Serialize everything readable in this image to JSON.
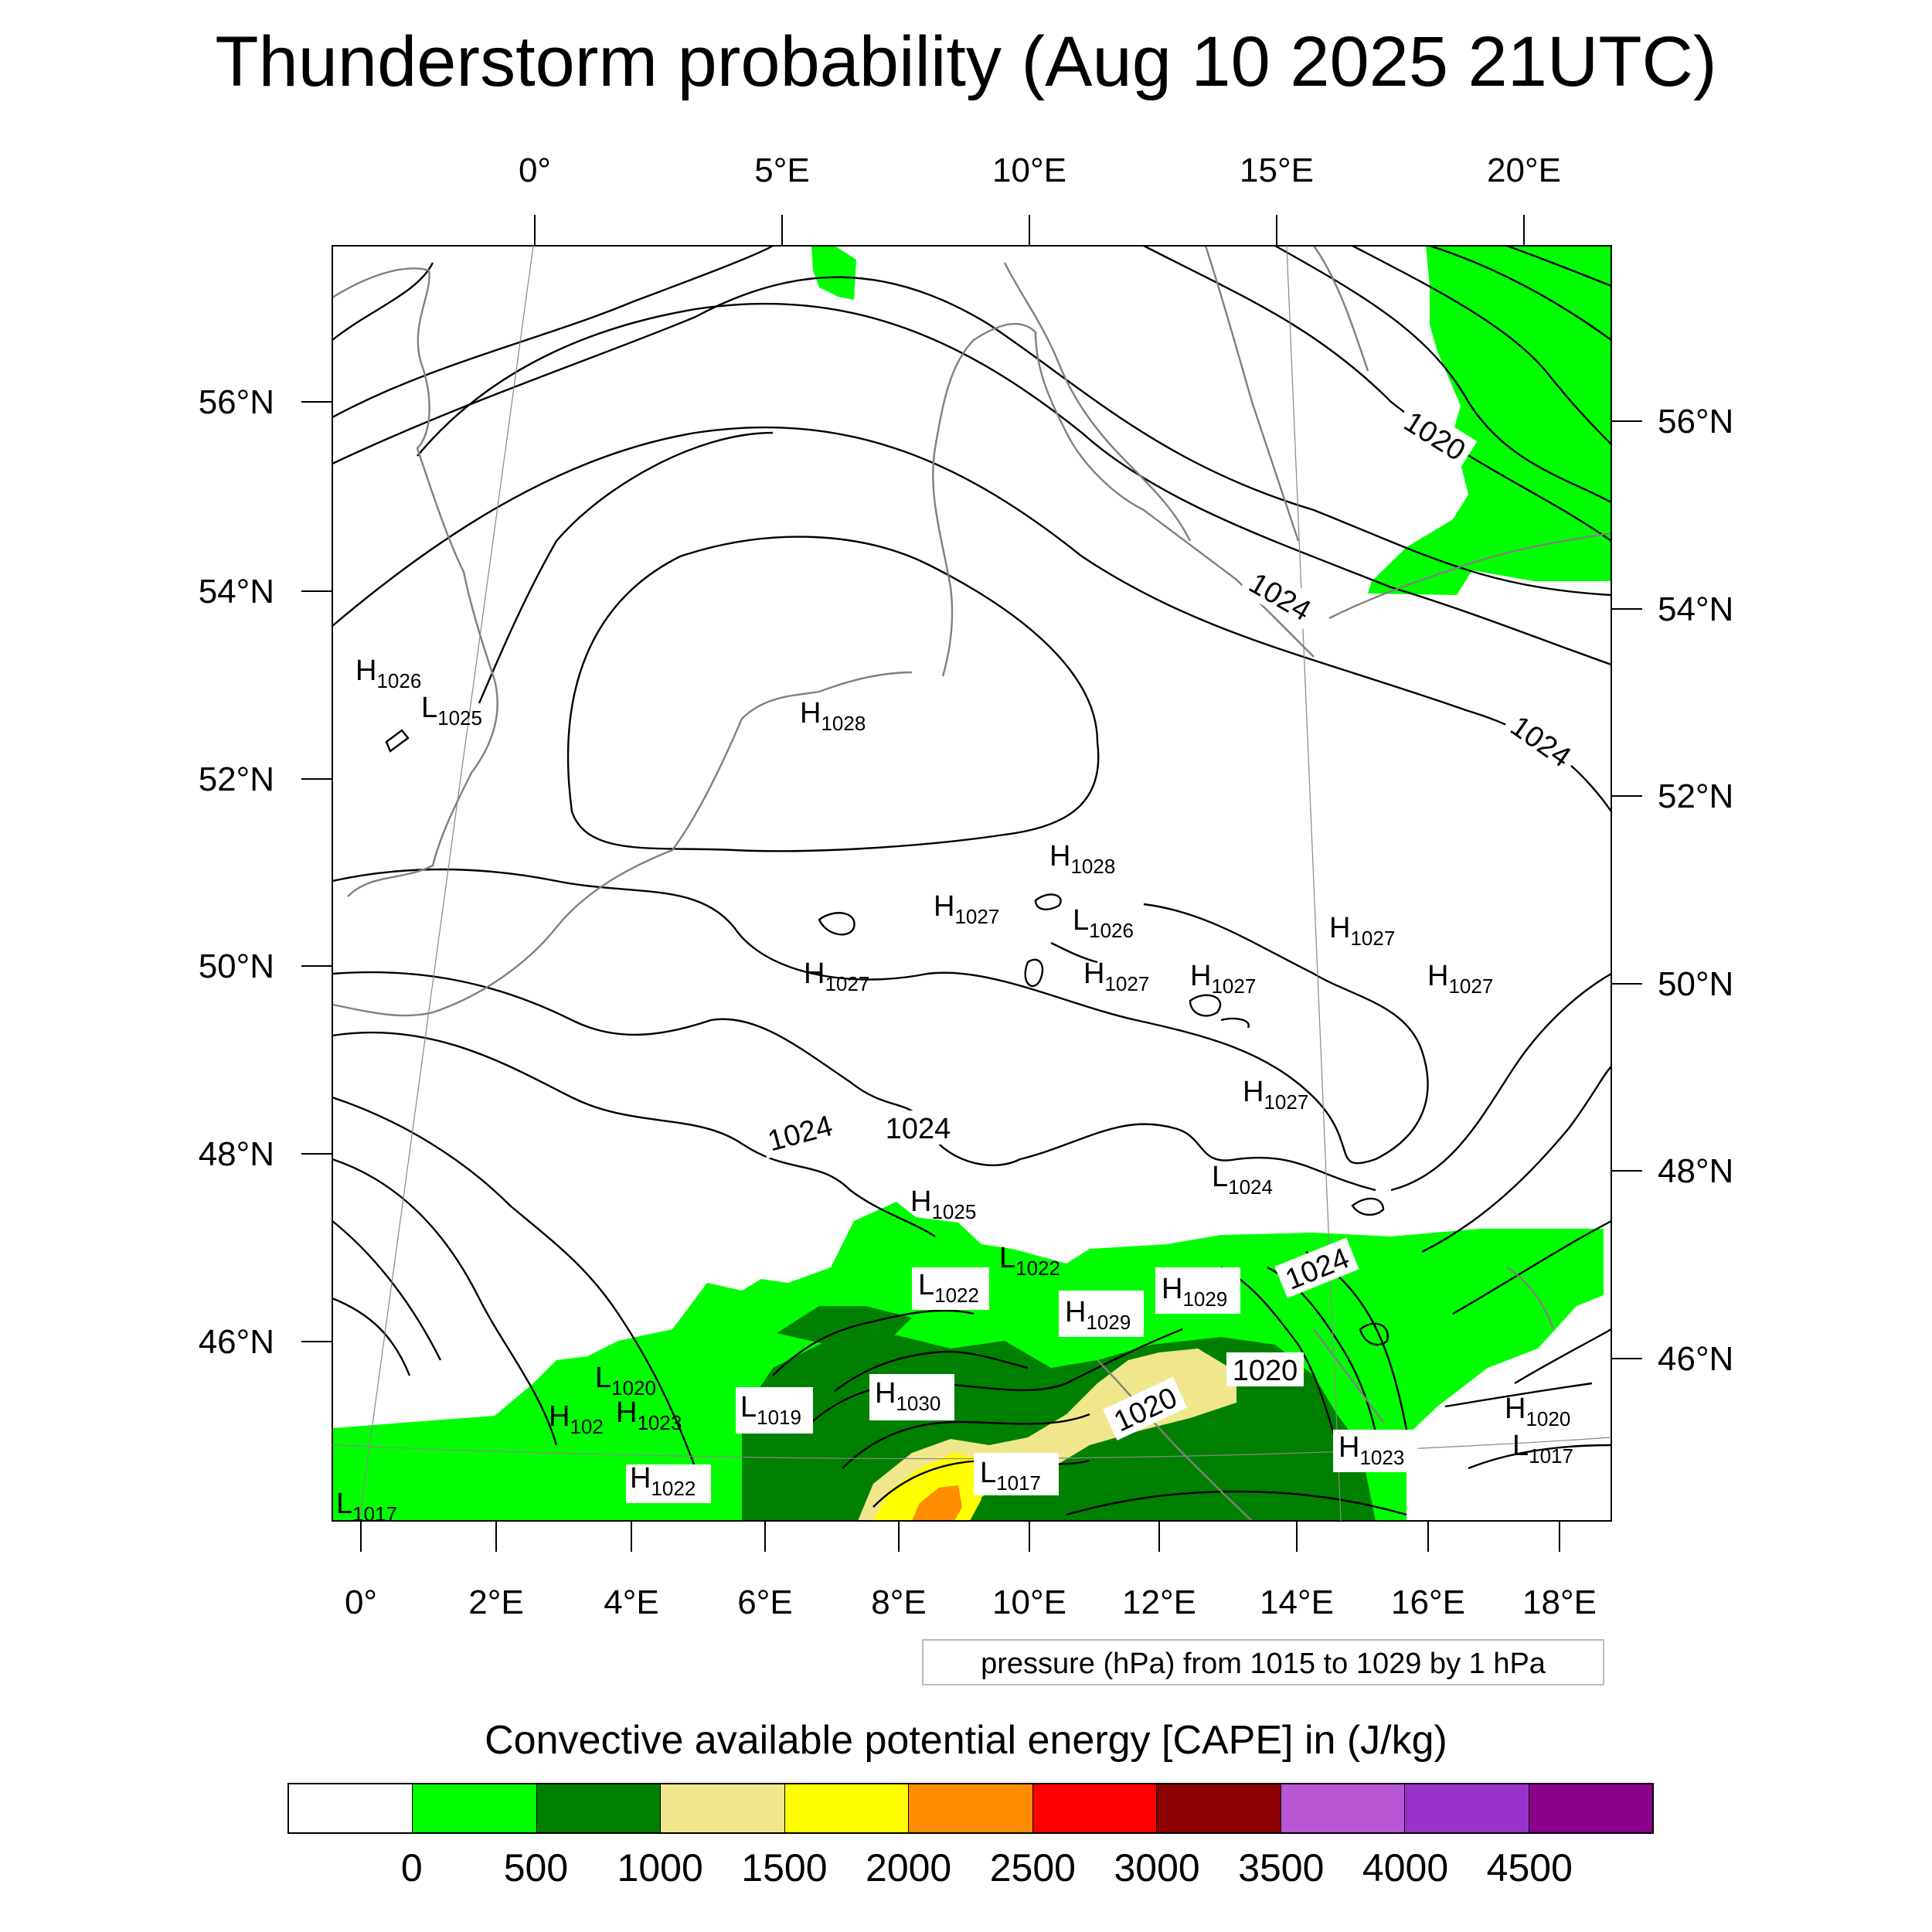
{
  "title": "Thunderstorm probability (Aug 10 2025 21UTC)",
  "top_axis": [
    "0°",
    "5°E",
    "10°E",
    "15°E",
    "20°E"
  ],
  "bottom_axis": [
    "0°",
    "2°E",
    "4°E",
    "6°E",
    "8°E",
    "10°E",
    "12°E",
    "14°E",
    "16°E",
    "18°E"
  ],
  "left_axis": [
    "56°N",
    "54°N",
    "52°N",
    "50°N",
    "48°N",
    "46°N"
  ],
  "right_axis": [
    "56°N",
    "54°N",
    "52°N",
    "50°N",
    "48°N",
    "46°N"
  ],
  "contour_labels": [
    "1020",
    "1024",
    "1024",
    "1024",
    "1024",
    "1024",
    "1020",
    "1020"
  ],
  "pressure_centers": [
    {
      "t": "H",
      "v": "1026"
    },
    {
      "t": "L",
      "v": "1025"
    },
    {
      "t": "H",
      "v": "1028"
    },
    {
      "t": "H",
      "v": "1028"
    },
    {
      "t": "H",
      "v": "1027"
    },
    {
      "t": "L",
      "v": "1026"
    },
    {
      "t": "H",
      "v": "1027"
    },
    {
      "t": "H",
      "v": "1027"
    },
    {
      "t": "H",
      "v": "1027"
    },
    {
      "t": "H",
      "v": "1027"
    },
    {
      "t": "H",
      "v": "1027"
    },
    {
      "t": "H",
      "v": "1027"
    },
    {
      "t": "L",
      "v": "1024"
    },
    {
      "t": "H",
      "v": "1025"
    },
    {
      "t": "L",
      "v": "1022"
    },
    {
      "t": "L",
      "v": "1022"
    },
    {
      "t": "H",
      "v": "1029"
    },
    {
      "t": "H",
      "v": "1029"
    },
    {
      "t": "L",
      "v": "1020"
    },
    {
      "t": "H",
      "v": "102"
    },
    {
      "t": "H",
      "v": "1023"
    },
    {
      "t": "L",
      "v": "1019"
    },
    {
      "t": "H",
      "v": "1030"
    },
    {
      "t": "H",
      "v": "1022"
    },
    {
      "t": "L",
      "v": "1017"
    },
    {
      "t": "H",
      "v": "1023"
    },
    {
      "t": "H",
      "v": "1020"
    },
    {
      "t": "L",
      "v": "1017"
    },
    {
      "t": "L",
      "v": "1017"
    }
  ],
  "contour_info": "pressure (hPa) from 1015 to 1029 by 1 hPa",
  "colorbar": {
    "title": "Convective available potential energy [CAPE] in (J/kg)",
    "colors": [
      "#ffffff",
      "#00ff00",
      "#008000",
      "#f0e68c",
      "#ffff00",
      "#ff8c00",
      "#ff0000",
      "#8b0000",
      "#ba55d3",
      "#9932cc",
      "#8b008b"
    ],
    "labels": [
      "0",
      "500",
      "1000",
      "1500",
      "2000",
      "2500",
      "3000",
      "3500",
      "4000",
      "4500"
    ]
  },
  "map_colors": {
    "cape_low": "#00ff00",
    "cape_mid": "#008000",
    "cape_high": "#f0e68c",
    "cape_yellow": "#ffff00",
    "cape_orange": "#ff8c00",
    "coast": "#808080",
    "isobar": "#000000"
  }
}
